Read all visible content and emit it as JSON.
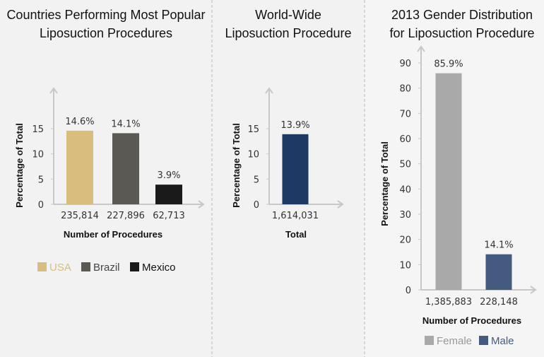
{
  "colors": {
    "axis": "#c8c8c8",
    "divider": "#b8b8b8",
    "usa": "#d8bd7f",
    "brazil": "#5a5953",
    "mexico": "#1a1a1a",
    "world": "#1e3964",
    "female": "#a9a9a9",
    "male": "#445a7f"
  },
  "chart_data": [
    {
      "type": "bar",
      "title": [
        "Countries Performing Most Popular",
        "Liposuction Procedures"
      ],
      "ylabel": "Percentage of Total",
      "xlabel": "Number of Procedures",
      "ylim": [
        0,
        15
      ],
      "yticks": [
        0,
        5,
        10,
        15
      ],
      "categories": [
        "235,814",
        "227,896",
        "62,713"
      ],
      "values": [
        14.6,
        14.1,
        3.9
      ],
      "data_labels": [
        "14.6%",
        "14.1%",
        "3.9%"
      ],
      "legend": [
        "USA",
        "Brazil",
        "Mexico"
      ],
      "legend_placement": "bottom",
      "grid": false
    },
    {
      "type": "bar",
      "title": [
        "World-Wide",
        "Liposuction Procedure"
      ],
      "ylabel": "Percentage of Total",
      "xlabel": "Total",
      "ylim": [
        0,
        15
      ],
      "yticks": [
        0,
        5,
        10,
        15
      ],
      "categories": [
        "1,614,031"
      ],
      "values": [
        13.9
      ],
      "data_labels": [
        "13.9%"
      ],
      "grid": false
    },
    {
      "type": "bar",
      "title": [
        "2013 Gender Distribution",
        "for Liposuction Procedure"
      ],
      "ylabel": "Percentage of Total",
      "xlabel": "Number of Procedures",
      "ylim": [
        0,
        90
      ],
      "yticks": [
        0,
        10,
        20,
        30,
        40,
        50,
        60,
        70,
        80,
        90
      ],
      "categories": [
        "1,385,883",
        "228,148"
      ],
      "values": [
        85.9,
        14.1
      ],
      "data_labels": [
        "85.9%",
        "14.1%"
      ],
      "legend": [
        "Female",
        "Male"
      ],
      "legend_placement": "bottom",
      "grid": false
    }
  ]
}
